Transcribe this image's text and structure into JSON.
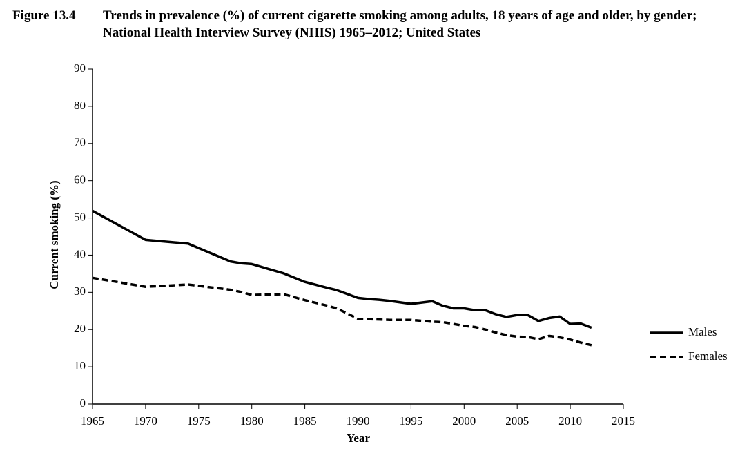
{
  "chart_data": {
    "type": "line",
    "figure_label": "Figure 13.4",
    "title": "Trends in prevalence (%) of current cigarette smoking among adults, 18 years of age and older, by gender; National Health Interview Survey (NHIS) 1965–2012; United States",
    "x_label": "Year",
    "y_label": "Current smoking (%)",
    "x": [
      1965,
      1970,
      1974,
      1978,
      1979,
      1980,
      1983,
      1985,
      1987,
      1988,
      1990,
      1991,
      1992,
      1993,
      1994,
      1995,
      1997,
      1998,
      1999,
      2000,
      2001,
      2002,
      2003,
      2004,
      2005,
      2006,
      2007,
      2008,
      2009,
      2010,
      2011,
      2012
    ],
    "series": [
      {
        "name": "Males",
        "color": "#000000",
        "dash": "solid",
        "values": [
          51.9,
          44.1,
          43.1,
          38.3,
          37.8,
          37.6,
          35.1,
          32.8,
          31.3,
          30.6,
          28.5,
          28.2,
          28.0,
          27.7,
          27.3,
          26.9,
          27.6,
          26.4,
          25.7,
          25.7,
          25.2,
          25.2,
          24.1,
          23.4,
          23.9,
          23.9,
          22.3,
          23.1,
          23.5,
          21.5,
          21.6,
          20.5
        ]
      },
      {
        "name": "Females",
        "color": "#000000",
        "dash": "dashed",
        "values": [
          33.9,
          31.5,
          32.1,
          30.7,
          30.1,
          29.3,
          29.5,
          27.9,
          26.5,
          25.7,
          22.9,
          22.8,
          22.7,
          22.6,
          22.6,
          22.6,
          22.1,
          22.0,
          21.5,
          21.0,
          20.7,
          20.0,
          19.2,
          18.5,
          18.1,
          18.0,
          17.4,
          18.3,
          17.9,
          17.3,
          16.5,
          15.8
        ]
      }
    ],
    "xlim": [
      1965,
      2015
    ],
    "xticks": [
      1965,
      1970,
      1975,
      1980,
      1985,
      1990,
      1995,
      2000,
      2005,
      2010,
      2015
    ],
    "ylim": [
      0,
      90
    ],
    "yticks": [
      0,
      10,
      20,
      30,
      40,
      50,
      60,
      70,
      80,
      90
    ],
    "grid": false,
    "legend": "right"
  }
}
